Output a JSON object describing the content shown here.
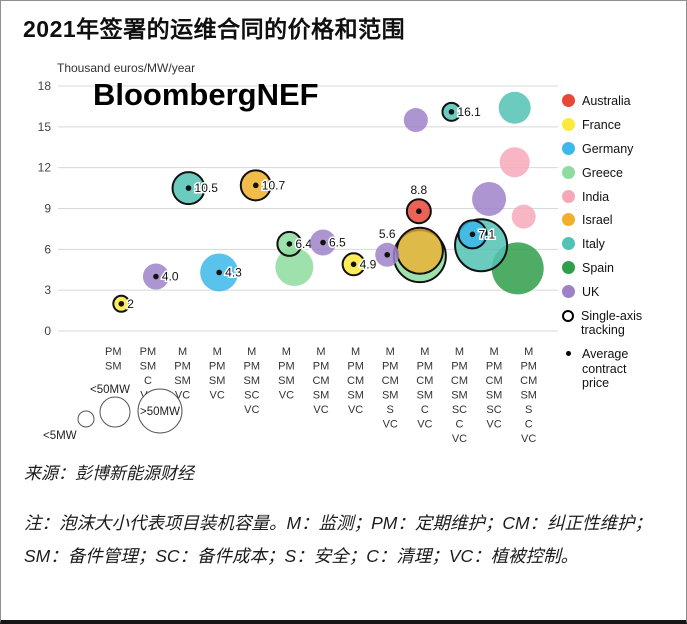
{
  "page": {
    "title": "2021年签署的运维合同的价格和范围",
    "watermark": "BloombergNEF",
    "source": "来源：彭博新能源财经",
    "note": "注：泡沫大小代表项目装机容量。M：监测；PM：定期维护；CM：纠正性维护；SM：备件管理；SC：备件成本；S：安全；C：清理；VC：植被控制。"
  },
  "chart_data": {
    "type": "scatter",
    "title": "2021年签署的运维合同的价格和范围",
    "xlabel": "",
    "ylabel": "Thousand euros/MW/year",
    "ylim": [
      0,
      18
    ],
    "yticks": [
      0,
      3,
      6,
      9,
      12,
      15,
      18
    ],
    "grid": true,
    "legend_position": "right",
    "countries": {
      "Australia": "#e8473a",
      "France": "#fde93a",
      "Germany": "#3cb9ea",
      "Greece": "#8edc9e",
      "India": "#f7a8b8",
      "Israel": "#f0b02c",
      "Italy": "#52c2b4",
      "Spain": "#2f9e49",
      "UK": "#9d82c8"
    },
    "extra_legend": [
      {
        "label": "Single-axis tracking",
        "marker": "ring"
      },
      {
        "label": "Average contract price",
        "marker": "dot"
      }
    ],
    "size_legend": [
      {
        "label": "<5MW",
        "size": "small"
      },
      {
        "label": "<50MW",
        "size": "medium"
      },
      {
        "label": ">50MW",
        "size": "large"
      }
    ],
    "categories": [
      [
        "PM",
        "SM"
      ],
      [
        "PM",
        "SM",
        "C",
        "VC"
      ],
      [
        "M",
        "PM",
        "SM",
        "VC"
      ],
      [
        "M",
        "PM",
        "SM",
        "VC"
      ],
      [
        "M",
        "PM",
        "SM",
        "SC",
        "VC"
      ],
      [
        "M",
        "PM",
        "SM",
        "VC"
      ],
      [
        "M",
        "PM",
        "CM",
        "SM",
        "VC"
      ],
      [
        "M",
        "PM",
        "CM",
        "SM",
        "VC"
      ],
      [
        "M",
        "PM",
        "CM",
        "SM",
        "S",
        "VC"
      ],
      [
        "M",
        "PM",
        "CM",
        "SM",
        "C",
        "VC"
      ],
      [
        "M",
        "PM",
        "CM",
        "SM",
        "SC",
        "C",
        "VC"
      ],
      [
        "M",
        "PM",
        "CM",
        "SM",
        "SC",
        "VC"
      ],
      [
        "M",
        "PM",
        "CM",
        "SM",
        "S",
        "C",
        "VC"
      ]
    ],
    "bubbles": [
      {
        "country": "UK",
        "col": 10,
        "value": 15.5,
        "r": 12,
        "dx": -9,
        "ring": false,
        "avg_dot": false
      },
      {
        "country": "Italy",
        "col": 13,
        "value": 16.4,
        "r": 16,
        "dx": -14,
        "ring": false,
        "avg_dot": false
      },
      {
        "country": "India",
        "col": 13,
        "value": 12.4,
        "r": 15,
        "dx": -14,
        "ring": false,
        "avg_dot": false
      },
      {
        "country": "India",
        "col": 13,
        "value": 8.4,
        "r": 12,
        "dx": -5,
        "ring": false,
        "avg_dot": false
      },
      {
        "country": "Spain",
        "col": 13,
        "value": 4.6,
        "r": 26,
        "dx": -11,
        "ring": false,
        "avg_dot": false
      },
      {
        "country": "UK",
        "col": 12,
        "value": 9.7,
        "r": 17,
        "dx": -5,
        "ring": false,
        "avg_dot": false
      },
      {
        "country": "Italy",
        "col": 12,
        "value": 6.3,
        "r": 26,
        "dx": -13,
        "ring": true,
        "avg_dot": false
      },
      {
        "country": "Greece",
        "col": 6,
        "value": 4.7,
        "r": 19,
        "dx": 8,
        "ring": false,
        "avg_dot": false
      },
      {
        "country": "Greece",
        "col": 10,
        "value": 5.5,
        "r": 26,
        "dx": -5,
        "ring": true,
        "avg_dot": false
      },
      {
        "country": "Israel",
        "col": 10,
        "value": 5.9,
        "r": 23,
        "dx": -5,
        "ring": true,
        "avg_dot": false,
        "opacity": 0.78
      },
      {
        "country": "France",
        "col": 1,
        "value": 2,
        "r": 8,
        "dx": 8,
        "ring": true,
        "avg_dot": true,
        "label": "2"
      },
      {
        "country": "UK",
        "col": 2,
        "value": 4.0,
        "r": 13,
        "dx": 8,
        "ring": false,
        "avg_dot": true,
        "label": "4.0"
      },
      {
        "country": "Italy",
        "col": 3,
        "value": 10.5,
        "r": 16,
        "dx": 6,
        "ring": true,
        "avg_dot": true,
        "label": "10.5"
      },
      {
        "country": "Germany",
        "col": 4,
        "value": 4.3,
        "r": 19,
        "dx": 2,
        "ring": false,
        "avg_dot": true,
        "label": "4.3"
      },
      {
        "country": "Israel",
        "col": 5,
        "value": 10.7,
        "r": 15,
        "dx": 4,
        "ring": true,
        "avg_dot": true,
        "label": "10.7"
      },
      {
        "country": "Greece",
        "col": 6,
        "value": 6.4,
        "r": 12,
        "dx": 3,
        "ring": true,
        "avg_dot": true,
        "label": "6.4"
      },
      {
        "country": "UK",
        "col": 7,
        "value": 6.5,
        "r": 13,
        "dx": 2,
        "ring": false,
        "avg_dot": true,
        "label": "6.5"
      },
      {
        "country": "France",
        "col": 8,
        "value": 4.9,
        "r": 11,
        "dx": -2,
        "ring": true,
        "avg_dot": true,
        "label": "4.9"
      },
      {
        "country": "UK",
        "col": 9,
        "value": 5.6,
        "r": 12,
        "dx": -3,
        "ring": false,
        "avg_dot": true,
        "label": "5.6",
        "label_pos": "above"
      },
      {
        "country": "Australia",
        "col": 10,
        "value": 8.8,
        "r": 12,
        "dx": -6,
        "ring": true,
        "avg_dot": true,
        "label": "8.8",
        "label_pos": "above"
      },
      {
        "country": "Italy",
        "col": 11,
        "value": 16.1,
        "r": 9,
        "dx": -8,
        "ring": true,
        "avg_dot": true,
        "label": "16.1"
      },
      {
        "country": "Germany",
        "col": 11,
        "value": 7.1,
        "r": 14,
        "dx": 13,
        "ring": true,
        "avg_dot": true,
        "label": "7.1"
      }
    ]
  }
}
